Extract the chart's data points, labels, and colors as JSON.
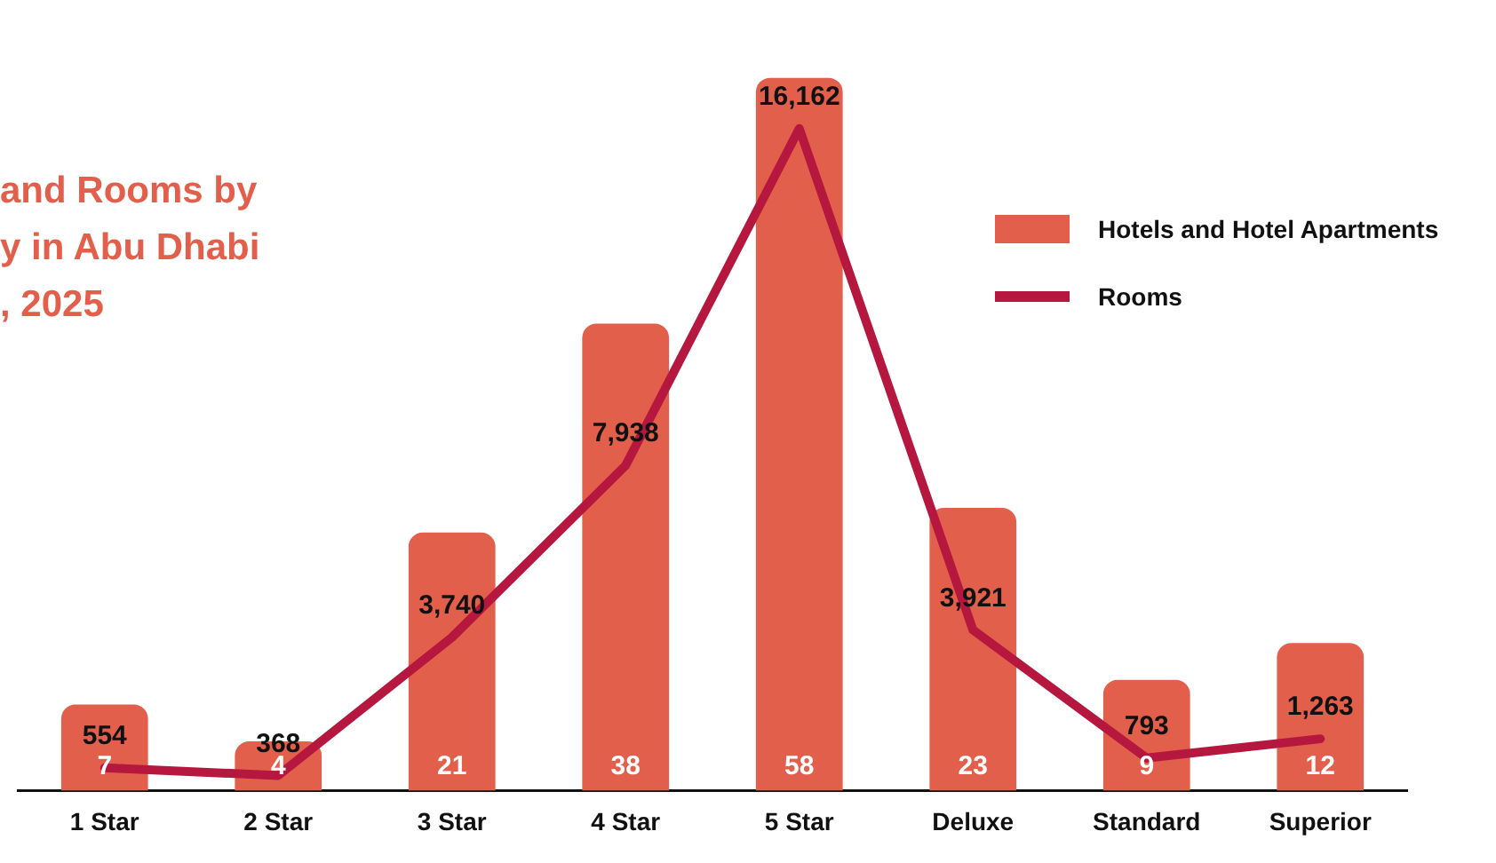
{
  "chart_data": {
    "type": "bar",
    "title": "and Rooms by\ny in Abu Dhabi\n, 2025",
    "categories": [
      "1 Star",
      "2 Star",
      "3 Star",
      "4 Star",
      "5 Star",
      "Deluxe",
      "Standard",
      "Superior"
    ],
    "series": [
      {
        "name": "Hotels and Hotel Apartments",
        "color": "#e2604b",
        "values": [
          7,
          4,
          21,
          38,
          58,
          23,
          9,
          12
        ]
      },
      {
        "name": "Rooms",
        "type": "line",
        "axis": "y2",
        "color": "#b5173f",
        "values": [
          554,
          368,
          3740,
          7938,
          16162,
          3921,
          793,
          1263
        ],
        "value_labels": [
          "554",
          "368",
          "3,740",
          "7,938",
          "16,162",
          "3,921",
          "793",
          "1,263"
        ]
      }
    ],
    "tick_labels": "x",
    "data_labels": true,
    "legend": "right",
    "grid": false,
    "marker": "none"
  }
}
